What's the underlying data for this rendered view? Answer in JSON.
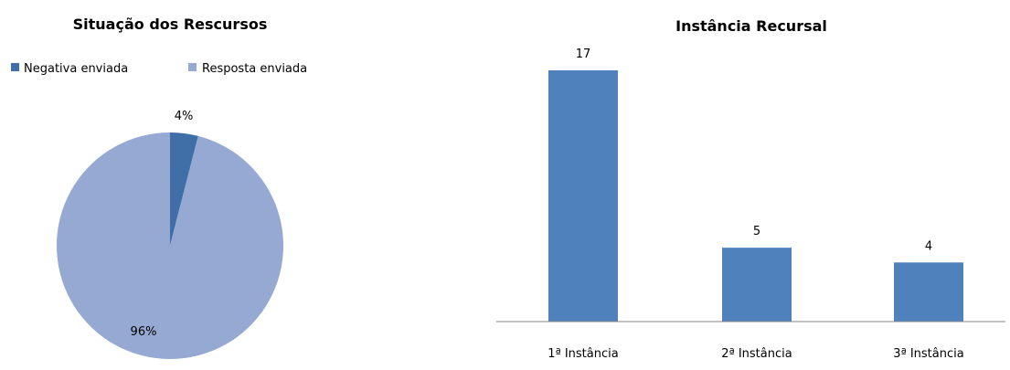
{
  "chart_data": [
    {
      "type": "pie",
      "title": "Situação dos Rescursos",
      "legend_position": "top",
      "categories": [
        "Negativa enviada",
        "Resposta enviada"
      ],
      "values": [
        4,
        96
      ],
      "labels": [
        "4%",
        "96%"
      ],
      "colors": [
        "#3f6fa6",
        "#95a9d2"
      ]
    },
    {
      "type": "bar",
      "title": "Instância Recursal",
      "categories": [
        "1ª Instância",
        "2ª Instância",
        "3ª Instância"
      ],
      "values": [
        17,
        5,
        4
      ],
      "ylim": [
        0,
        17
      ],
      "grid": false,
      "color": "#4f81bd"
    }
  ]
}
